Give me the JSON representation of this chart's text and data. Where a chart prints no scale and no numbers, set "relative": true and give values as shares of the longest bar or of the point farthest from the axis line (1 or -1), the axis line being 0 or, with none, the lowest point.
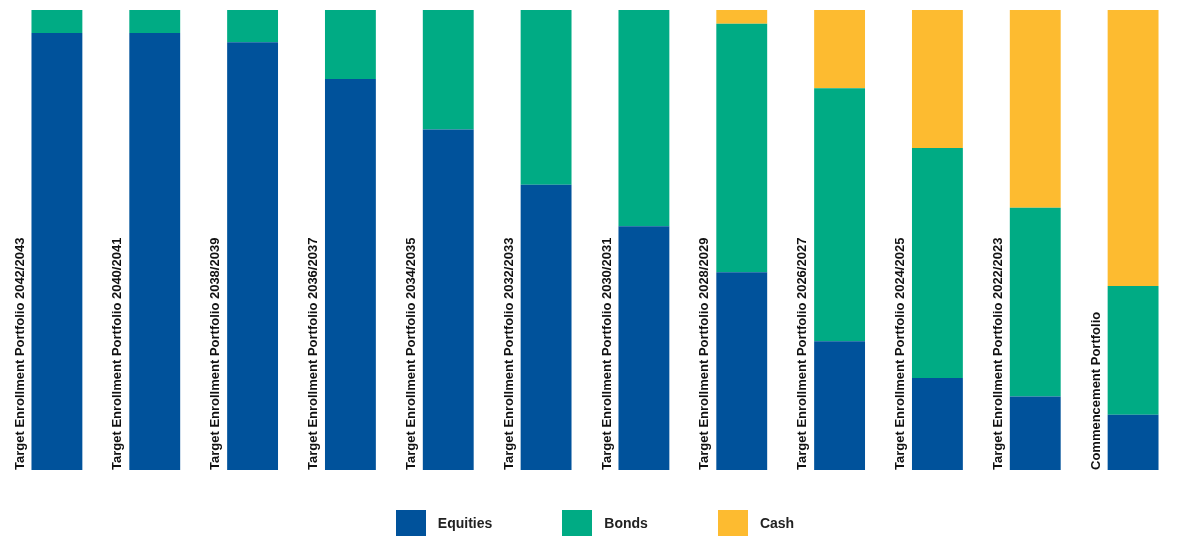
{
  "chart_data": {
    "type": "bar",
    "stacked": true,
    "relative": true,
    "legend": "bottom",
    "categories": [
      "Target Enrollment Portfolio 2042/2043",
      "Target Enrollment Portfolio 2040/2041",
      "Target Enrollment Portfolio 2038/2039",
      "Target Enrollment Portfolio 2036/2037",
      "Target Enrollment Portfolio 2034/2035",
      "Target Enrollment Portfolio 2032/2033",
      "Target Enrollment Portfolio 2030/2031",
      "Target Enrollment Portfolio 2028/2029",
      "Target Enrollment Portfolio 2026/2027",
      "Target Enrollment Portfolio 2024/2025",
      "Target Enrollment Portfolio 2022/2023",
      "Commencement Portfolio"
    ],
    "series": [
      {
        "name": "Equities",
        "color": "#00529b",
        "values": [
          0.95,
          0.95,
          0.93,
          0.85,
          0.74,
          0.62,
          0.53,
          0.43,
          0.28,
          0.2,
          0.16,
          0.12
        ]
      },
      {
        "name": "Bonds",
        "color": "#00ab84",
        "values": [
          0.05,
          0.05,
          0.07,
          0.15,
          0.26,
          0.38,
          0.47,
          0.54,
          0.55,
          0.5,
          0.41,
          0.28
        ]
      },
      {
        "name": "Cash",
        "color": "#fdbb30",
        "values": [
          0,
          0,
          0,
          0,
          0,
          0,
          0,
          0.03,
          0.17,
          0.3,
          0.43,
          0.6
        ]
      }
    ]
  }
}
